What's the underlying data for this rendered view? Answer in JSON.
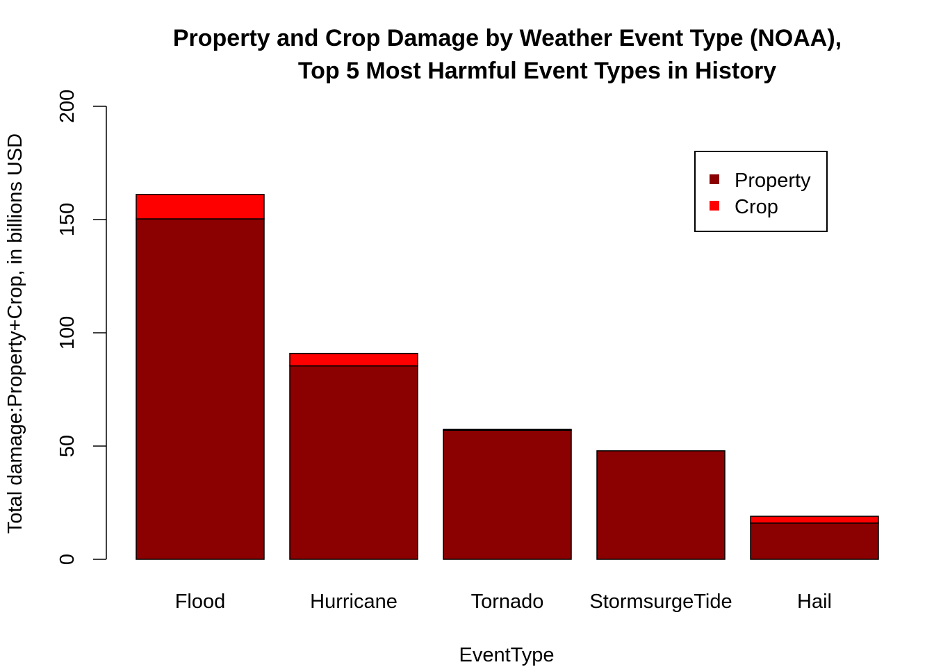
{
  "chart_data": {
    "type": "bar",
    "stacked": true,
    "title": "Property and Crop Damage by Weather Event Type (NOAA),",
    "subtitle": "Top 5 Most Harmful Event Types in History",
    "xlabel": "EventType",
    "ylabel": "Total damage:Property+Crop, in billions USD",
    "ylim": [
      0,
      200
    ],
    "yticks": [
      0,
      50,
      100,
      150,
      200
    ],
    "categories": [
      "Flood",
      "Hurricane",
      "Tornado",
      "StormsurgeTide",
      "Hail"
    ],
    "series": [
      {
        "name": "Property",
        "color": "#8B0000",
        "values": [
          150.3,
          85.4,
          57.0,
          47.9,
          16.0
        ]
      },
      {
        "name": "Crop",
        "color": "#FF0000",
        "values": [
          10.8,
          5.5,
          0.4,
          0.0,
          3.0
        ]
      }
    ],
    "legend": {
      "position": "top-right"
    },
    "grid": false
  }
}
